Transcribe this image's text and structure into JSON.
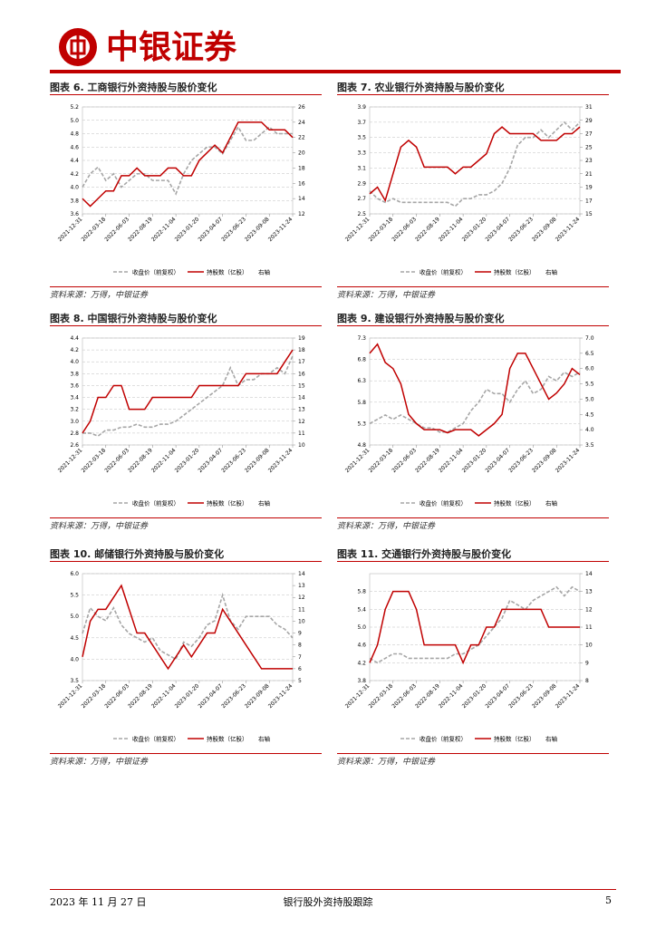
{
  "header": {
    "brand": "中银证券"
  },
  "footer": {
    "date": "2023 年 11 月 27 日",
    "title": "银行股外资持股跟踪",
    "page": "5"
  },
  "chart_data": [
    {
      "type": "line",
      "title": "图表 6. 工商银行外资持股与股价变化",
      "source": "资料来源：万得，中银证券",
      "y2_note": "右轴",
      "grid": true,
      "x": [
        "2021-12-31",
        null,
        null,
        "2022-03-18",
        null,
        null,
        "2022-06-03",
        null,
        null,
        "2022-08-19",
        null,
        null,
        "2022-11-04",
        null,
        null,
        "2023-01-20",
        null,
        null,
        "2023-04-07",
        null,
        null,
        "2023-06-23",
        null,
        null,
        "2023-09-08",
        null,
        null,
        "2023-11-24"
      ],
      "ylim": [
        3.6,
        5.2
      ],
      "yticks": [
        3.6,
        3.8,
        {
          "value": 4.0,
          "label": "4.0"
        },
        4.2,
        4.4,
        4.6,
        4.8,
        {
          "value": 5.0,
          "label": "5.0"
        },
        5.2
      ],
      "y2lim": [
        12,
        26
      ],
      "y2ticks": [
        12,
        14,
        16,
        18,
        20,
        22,
        24,
        26
      ],
      "series": [
        {
          "name": "收盘价（前复权）",
          "color": "#a6a6a6",
          "style": "dashed",
          "values": [
            4.0,
            4.2,
            4.3,
            4.1,
            4.2,
            4.0,
            4.1,
            4.2,
            4.2,
            4.1,
            4.1,
            4.1,
            3.9,
            4.2,
            4.4,
            4.5,
            4.6,
            4.6,
            4.5,
            4.7,
            4.9,
            4.7,
            4.7,
            4.8,
            4.9,
            4.8,
            4.8,
            4.8
          ]
        },
        {
          "name": "持股数（亿股）",
          "color": "#c00000",
          "style": "solid",
          "axis": "y2",
          "values": [
            14,
            13,
            14,
            15,
            15,
            17,
            17,
            18,
            17,
            17,
            17,
            18,
            18,
            17,
            17,
            19,
            20,
            21,
            20,
            22,
            24,
            24,
            24,
            24,
            23,
            23,
            23,
            22
          ]
        }
      ]
    },
    {
      "type": "line",
      "title": "图表 7. 农业银行外资持股与股价变化",
      "source": "资料来源：万得，中银证券",
      "y2_note": "右轴",
      "grid": true,
      "x": [
        "2021-12-31",
        null,
        null,
        "2022-03-18",
        null,
        null,
        "2022-06-03",
        null,
        null,
        "2022-08-19",
        null,
        null,
        "2022-11-04",
        null,
        null,
        "2023-01-20",
        null,
        null,
        "2023-04-07",
        null,
        null,
        "2023-06-23",
        null,
        null,
        "2023-09-08",
        null,
        null,
        "2023-11-24"
      ],
      "ylim": [
        2.5,
        3.9
      ],
      "yticks": [
        2.5,
        2.7,
        2.9,
        3.1,
        3.3,
        3.5,
        3.7,
        3.9
      ],
      "y2lim": [
        15,
        31
      ],
      "y2ticks": [
        15,
        17,
        19,
        21,
        23,
        25,
        27,
        29,
        31
      ],
      "series": [
        {
          "name": "收盘价（前复权）",
          "color": "#a6a6a6",
          "style": "dashed",
          "values": [
            2.8,
            2.7,
            2.65,
            2.7,
            2.65,
            2.65,
            2.65,
            2.65,
            2.65,
            2.65,
            2.65,
            2.6,
            2.7,
            2.7,
            2.75,
            2.75,
            2.8,
            2.9,
            3.1,
            3.4,
            3.5,
            3.5,
            3.6,
            3.5,
            3.6,
            3.7,
            3.6,
            3.7
          ]
        },
        {
          "name": "持股数（亿股）",
          "color": "#c00000",
          "style": "solid",
          "axis": "y2",
          "values": [
            18,
            19,
            17,
            21,
            25,
            26,
            25,
            22,
            22,
            22,
            22,
            21,
            22,
            22,
            23,
            24,
            27,
            28,
            27,
            27,
            27,
            27,
            26,
            26,
            26,
            27,
            27,
            28
          ]
        }
      ]
    },
    {
      "type": "line",
      "title": "图表 8. 中国银行外资持股与股价变化",
      "source": "资料来源：万得，中银证券",
      "y2_note": "右轴",
      "grid": true,
      "x": [
        "2021-12-31",
        null,
        null,
        "2022-03-18",
        null,
        null,
        "2022-06-03",
        null,
        null,
        "2022-08-19",
        null,
        null,
        "2022-11-04",
        null,
        null,
        "2023-01-20",
        null,
        null,
        "2023-04-07",
        null,
        null,
        "2023-06-23",
        null,
        null,
        "2023-09-08",
        null,
        null,
        "2023-11-24"
      ],
      "ylim": [
        2.6,
        4.4
      ],
      "yticks": [
        2.6,
        2.8,
        {
          "value": 3.0,
          "label": "3.0"
        },
        3.2,
        3.4,
        3.6,
        3.8,
        {
          "value": 4.0,
          "label": "4.0"
        },
        4.2,
        4.4
      ],
      "y2lim": [
        10,
        19
      ],
      "y2ticks": [
        10,
        11,
        12,
        13,
        14,
        15,
        16,
        17,
        18,
        19
      ],
      "series": [
        {
          "name": "收盘价（前复权）",
          "color": "#a6a6a6",
          "style": "dashed",
          "values": [
            2.8,
            2.8,
            2.75,
            2.85,
            2.85,
            2.9,
            2.9,
            2.95,
            2.9,
            2.9,
            2.95,
            2.95,
            3.0,
            3.1,
            3.2,
            3.3,
            3.4,
            3.5,
            3.6,
            3.9,
            3.6,
            3.7,
            3.7,
            3.8,
            3.8,
            3.9,
            3.8,
            4.1
          ]
        },
        {
          "name": "持股数（亿股）",
          "color": "#c00000",
          "style": "solid",
          "axis": "y2",
          "values": [
            11,
            12,
            14,
            14,
            15,
            15,
            13,
            13,
            13,
            14,
            14,
            14,
            14,
            14,
            14,
            15,
            15,
            15,
            15,
            15,
            15,
            16,
            16,
            16,
            16,
            16,
            17,
            18
          ]
        }
      ]
    },
    {
      "type": "line",
      "title": "图表 9. 建设银行外资持股与股价变化",
      "source": "资料来源：万得，中银证券",
      "y2_note": "右轴",
      "grid": true,
      "x": [
        "2021-12-31",
        null,
        null,
        "2022-03-18",
        null,
        null,
        "2022-06-03",
        null,
        null,
        "2022-08-19",
        null,
        null,
        "2022-11-04",
        null,
        null,
        "2023-01-20",
        null,
        null,
        "2023-04-07",
        null,
        null,
        "2023-06-23",
        null,
        null,
        "2023-09-08",
        null,
        null,
        "2023-11-24"
      ],
      "ylim": [
        4.8,
        7.3
      ],
      "yticks": [
        4.8,
        5.3,
        5.8,
        6.3,
        6.8,
        7.3
      ],
      "y2lim": [
        3.5,
        7.0
      ],
      "y2ticks": [
        3.5,
        {
          "value": 4.0,
          "label": "4.0"
        },
        4.5,
        {
          "value": 5.0,
          "label": "5.0"
        },
        5.5,
        {
          "value": 6.0,
          "label": "6.0"
        },
        6.5,
        {
          "value": 7.0,
          "label": "7.0"
        }
      ],
      "series": [
        {
          "name": "收盘价（前复权）",
          "color": "#a6a6a6",
          "style": "dashed",
          "values": [
            5.3,
            5.4,
            5.5,
            5.4,
            5.5,
            5.4,
            5.3,
            5.2,
            5.2,
            5.1,
            5.1,
            5.2,
            5.3,
            5.6,
            5.8,
            6.1,
            6.0,
            6.0,
            5.8,
            6.1,
            6.3,
            6.0,
            6.1,
            6.4,
            6.3,
            6.5,
            6.4,
            6.5
          ]
        },
        {
          "name": "持股数（亿股）",
          "color": "#c00000",
          "style": "solid",
          "axis": "y2",
          "values": [
            6.5,
            6.8,
            6.2,
            6.0,
            5.5,
            4.5,
            4.2,
            4.0,
            4.0,
            4.0,
            3.9,
            4.0,
            4.0,
            4.0,
            3.8,
            4.0,
            4.2,
            4.5,
            6.0,
            6.5,
            6.5,
            6.0,
            5.5,
            5.0,
            5.2,
            5.5,
            6.0,
            5.8
          ]
        }
      ]
    },
    {
      "type": "line",
      "title": "图表 10. 邮储银行外资持股与股价变化",
      "source": "资料来源：万得，中银证券",
      "y2_note": "右轴",
      "grid": true,
      "x": [
        "2021-12-31",
        null,
        null,
        "2022-03-18",
        null,
        null,
        "2022-06-03",
        null,
        null,
        "2022-08-19",
        null,
        null,
        "2022-11-04",
        null,
        null,
        "2023-01-20",
        null,
        null,
        "2023-04-07",
        null,
        null,
        "2023-06-23",
        null,
        null,
        "2023-09-08",
        null,
        null,
        "2023-11-24"
      ],
      "ylim": [
        3.5,
        6.0
      ],
      "yticks": [
        3.5,
        {
          "value": 4.0,
          "label": "4.0"
        },
        4.5,
        {
          "value": 5.0,
          "label": "5.0"
        },
        5.5,
        {
          "value": 6.0,
          "label": "6.0"
        }
      ],
      "y2lim": [
        5,
        14
      ],
      "y2ticks": [
        5,
        6,
        7,
        8,
        9,
        10,
        11,
        12,
        13,
        14
      ],
      "series": [
        {
          "name": "收盘价（前复权）",
          "color": "#a6a6a6",
          "style": "dashed",
          "values": [
            4.6,
            5.2,
            5.0,
            4.9,
            5.2,
            4.8,
            4.6,
            4.5,
            4.4,
            4.5,
            4.2,
            4.1,
            4.0,
            4.4,
            4.3,
            4.5,
            4.8,
            4.9,
            5.5,
            4.9,
            4.7,
            5.0,
            5.0,
            5.0,
            5.0,
            4.8,
            4.7,
            4.5
          ]
        },
        {
          "name": "持股数（亿股）",
          "color": "#c00000",
          "style": "solid",
          "axis": "y2",
          "values": [
            7,
            10,
            11,
            11,
            12,
            13,
            11,
            9,
            9,
            8,
            7,
            6,
            7,
            8,
            7,
            8,
            9,
            9,
            11,
            10,
            9,
            8,
            7,
            6,
            6,
            6,
            6,
            6
          ]
        }
      ]
    },
    {
      "type": "line",
      "title": "图表 11. 交通银行外资持股与股价变化",
      "source": "资料来源：万得，中银证券",
      "y2_note": "右轴",
      "grid": true,
      "x": [
        "2021-12-31",
        null,
        null,
        "2022-03-18",
        null,
        null,
        "2022-06-03",
        null,
        null,
        "2022-08-19",
        null,
        null,
        "2022-11-04",
        null,
        null,
        "2023-01-20",
        null,
        null,
        "2023-04-07",
        null,
        null,
        "2023-06-23",
        null,
        null,
        "2023-09-08",
        null,
        null,
        "2023-11-24"
      ],
      "ylim": [
        3.8,
        6.2
      ],
      "yticks": [
        3.8,
        4.2,
        4.6,
        {
          "value": 5.0,
          "label": "5.0"
        },
        5.4,
        5.8
      ],
      "y2lim": [
        8,
        14
      ],
      "y2ticks": [
        8,
        9,
        10,
        11,
        12,
        13,
        14
      ],
      "series": [
        {
          "name": "收盘价（前复权）",
          "color": "#a6a6a6",
          "style": "dashed",
          "values": [
            4.3,
            4.2,
            4.3,
            4.4,
            4.4,
            4.3,
            4.3,
            4.3,
            4.3,
            4.3,
            4.3,
            4.4,
            4.4,
            4.5,
            4.6,
            4.8,
            5.0,
            5.2,
            5.6,
            5.5,
            5.4,
            5.6,
            5.7,
            5.8,
            5.9,
            5.7,
            5.9,
            5.8
          ]
        },
        {
          "name": "持股数（亿股）",
          "color": "#c00000",
          "style": "solid",
          "axis": "y2",
          "values": [
            9,
            10,
            12,
            13,
            13,
            13,
            12,
            10,
            10,
            10,
            10,
            10,
            9,
            10,
            10,
            11,
            11,
            12,
            12,
            12,
            12,
            12,
            12,
            11,
            11,
            11,
            11,
            11
          ]
        }
      ]
    }
  ]
}
